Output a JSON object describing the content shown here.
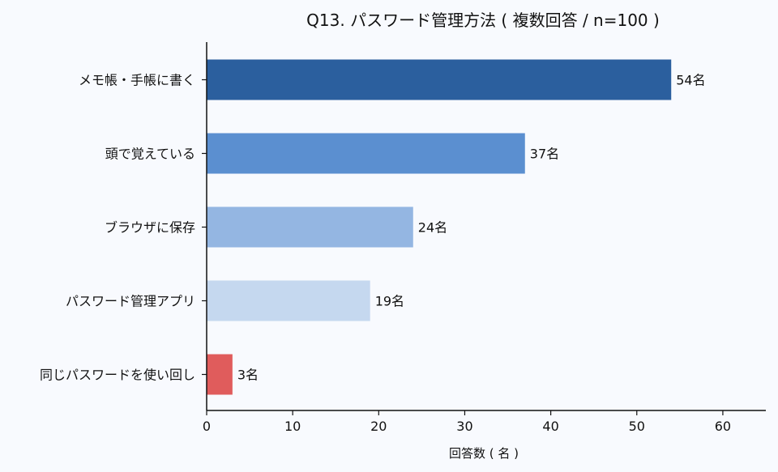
{
  "chart_data": {
    "type": "bar",
    "orientation": "horizontal",
    "title": "Q13. パスワード管理方法 ( 複数回答 / n=100 )",
    "xlabel": "回答数 ( 名 )",
    "ylabel": "",
    "categories": [
      "メモ帳・手帳に書く",
      "頭で覚えている",
      "ブラウザに保存",
      "パスワード管理アプリ",
      "同じパスワードを使い回し"
    ],
    "values": [
      54,
      37,
      24,
      19,
      3
    ],
    "data_labels": [
      "54名",
      "37名",
      "24名",
      "19名",
      "3名"
    ],
    "bar_colors": [
      "#2b5f9e",
      "#5b8fd0",
      "#94b6e2",
      "#c5d8ef",
      "#e05c5c"
    ],
    "xlim": [
      0,
      65
    ],
    "xticks": [
      0,
      10,
      20,
      30,
      40,
      50,
      60
    ],
    "grid": false,
    "background": "#f8fafe"
  }
}
